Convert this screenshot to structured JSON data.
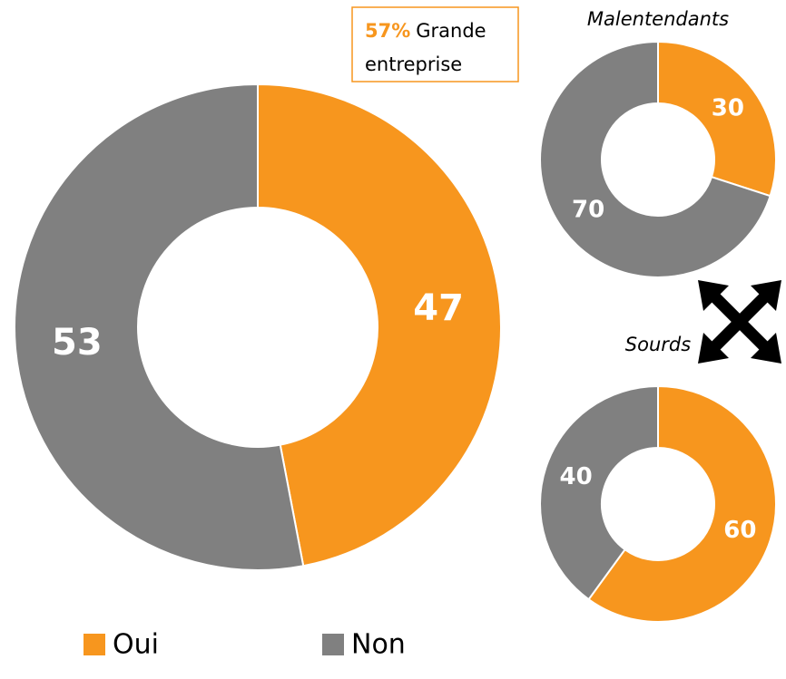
{
  "chart_data": [
    {
      "type": "donut",
      "categories": [
        "Oui",
        "Non"
      ],
      "values": [
        47,
        53
      ],
      "colors": [
        "#f7961e",
        "#808080"
      ],
      "annotation": {
        "label": "57%",
        "text": "Grande entreprise"
      }
    },
    {
      "type": "donut",
      "title": "Malentendants",
      "values": [
        30,
        70
      ],
      "colors": [
        "#f7961e",
        "#808080"
      ]
    },
    {
      "type": "donut",
      "title": "Sourds",
      "values": [
        60,
        40
      ],
      "colors": [
        "#f7961e",
        "#808080"
      ]
    }
  ]
}
